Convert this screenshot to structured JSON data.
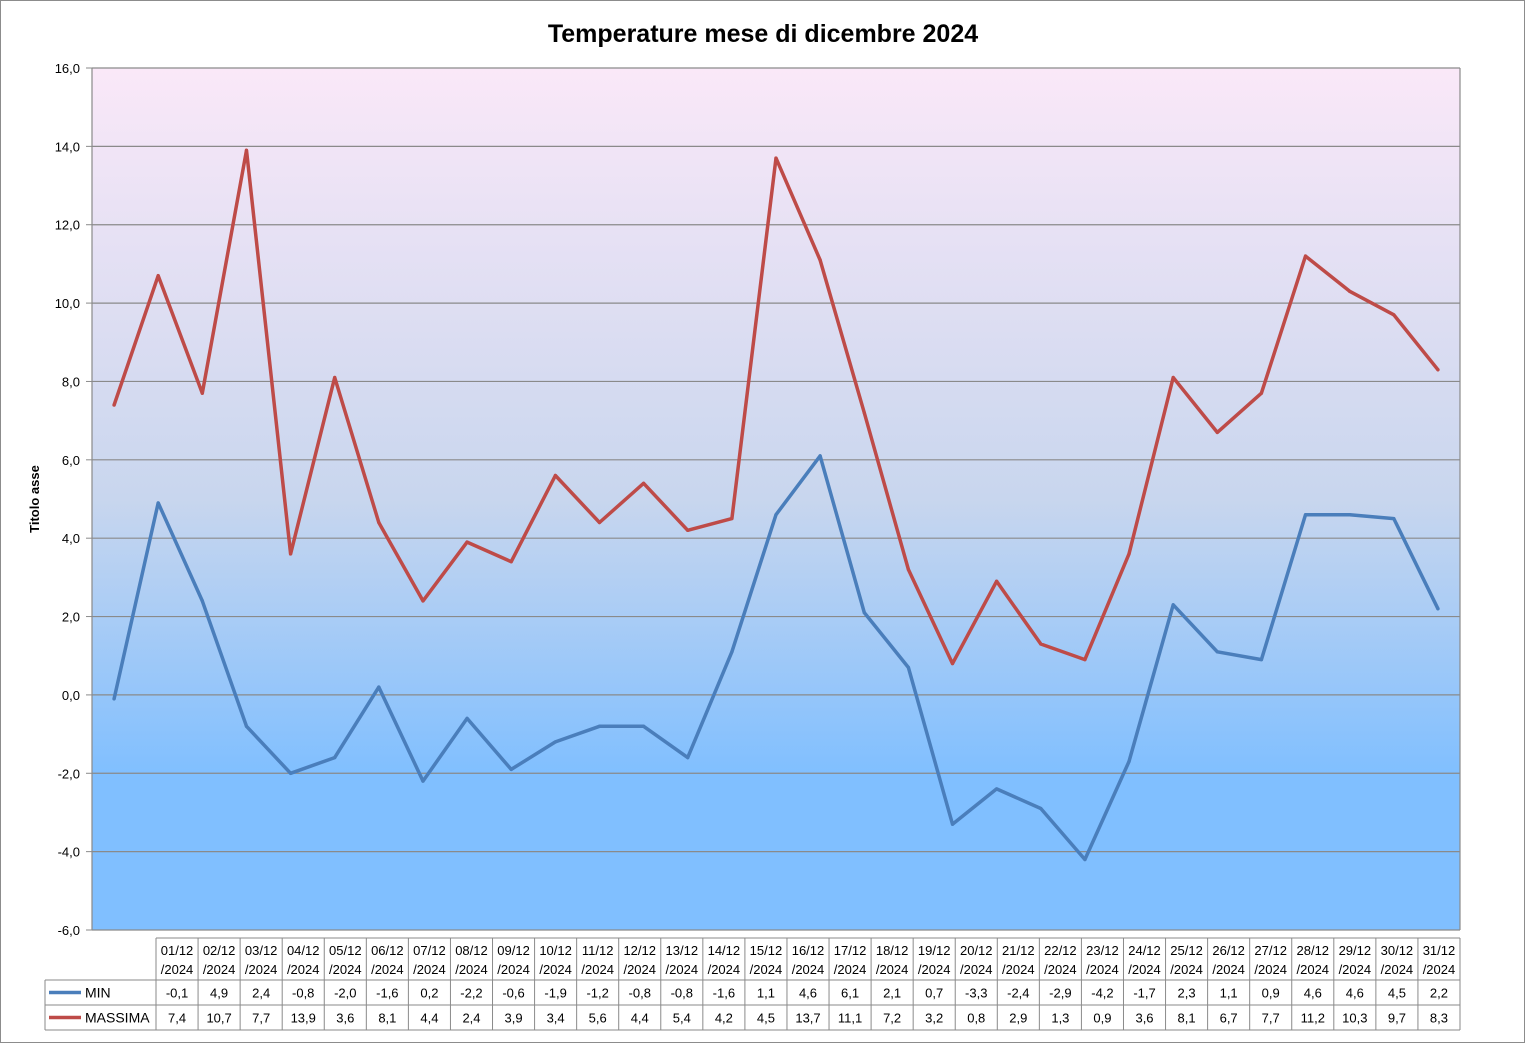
{
  "chart_data": {
    "type": "line",
    "title": "Temperature mese di dicembre 2024",
    "xlabel": "",
    "ylabel": "Titolo asse",
    "ylim": [
      -6,
      16
    ],
    "y_ticks": [
      "-6,0",
      "-4,0",
      "-2,0",
      "0,0",
      "2,0",
      "4,0",
      "6,0",
      "8,0",
      "10,0",
      "12,0",
      "14,0",
      "16,0"
    ],
    "grid": true,
    "legend": "data-table",
    "categories": [
      "01/12/2024",
      "02/12/2024",
      "03/12/2024",
      "04/12/2024",
      "05/12/2024",
      "06/12/2024",
      "07/12/2024",
      "08/12/2024",
      "09/12/2024",
      "10/12/2024",
      "11/12/2024",
      "12/12/2024",
      "13/12/2024",
      "14/12/2024",
      "15/12/2024",
      "16/12/2024",
      "17/12/2024",
      "18/12/2024",
      "19/12/2024",
      "20/12/2024",
      "21/12/2024",
      "22/12/2024",
      "23/12/2024",
      "24/12/2024",
      "25/12/2024",
      "26/12/2024",
      "27/12/2024",
      "28/12/2024",
      "29/12/2024",
      "30/12/2024",
      "31/12/2024"
    ],
    "series": [
      {
        "name": "MIN",
        "color": "#4a7ebb",
        "values": [
          -0.1,
          4.9,
          2.4,
          -0.8,
          -2.0,
          -1.6,
          0.2,
          -2.2,
          -0.6,
          -1.9,
          -1.2,
          -0.8,
          -0.8,
          -1.6,
          1.1,
          4.6,
          6.1,
          2.1,
          0.7,
          -3.3,
          -2.4,
          -2.9,
          -4.2,
          -1.7,
          2.3,
          1.1,
          0.9,
          4.6,
          4.6,
          4.5,
          2.2
        ],
        "labels": [
          "-0,1",
          "4,9",
          "2,4",
          "-0,8",
          "-2,0",
          "-1,6",
          "0,2",
          "-2,2",
          "-0,6",
          "-1,9",
          "-1,2",
          "-0,8",
          "-0,8",
          "-1,6",
          "1,1",
          "4,6",
          "6,1",
          "2,1",
          "0,7",
          "-3,3",
          "-2,4",
          "-2,9",
          "-4,2",
          "-1,7",
          "2,3",
          "1,1",
          "0,9",
          "4,6",
          "4,6",
          "4,5",
          "2,2"
        ]
      },
      {
        "name": "MASSIMA",
        "color": "#be4b48",
        "values": [
          7.4,
          10.7,
          7.7,
          13.9,
          3.6,
          8.1,
          4.4,
          2.4,
          3.9,
          3.4,
          5.6,
          4.4,
          5.4,
          4.2,
          4.5,
          13.7,
          11.1,
          7.2,
          3.2,
          0.8,
          2.9,
          1.3,
          0.9,
          3.6,
          8.1,
          6.7,
          7.7,
          11.2,
          10.3,
          9.7,
          8.3
        ],
        "labels": [
          "7,4",
          "10,7",
          "7,7",
          "13,9",
          "3,6",
          "8,1",
          "4,4",
          "2,4",
          "3,9",
          "3,4",
          "5,6",
          "4,4",
          "5,4",
          "4,2",
          "4,5",
          "13,7",
          "11,1",
          "7,2",
          "3,2",
          "0,8",
          "2,9",
          "1,3",
          "0,9",
          "3,6",
          "8,1",
          "6,7",
          "7,7",
          "11,2",
          "10,3",
          "9,7",
          "8,3"
        ]
      }
    ],
    "background_gradient": [
      "#fae8f8",
      "#80bfff"
    ]
  }
}
